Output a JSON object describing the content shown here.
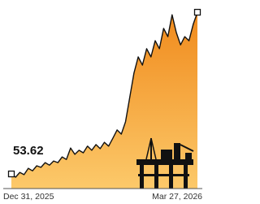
{
  "chart_data": {
    "type": "area",
    "categories": [
      "Dec 31, 2025",
      null,
      null,
      null,
      null,
      null,
      null,
      null,
      null,
      null,
      null,
      null,
      null,
      null,
      null,
      null,
      null,
      null,
      null,
      null,
      null,
      null,
      null,
      null,
      null,
      null,
      null,
      null,
      null,
      null,
      null,
      null,
      null,
      null,
      null,
      null,
      null,
      null,
      null,
      null,
      null,
      null,
      null,
      null,
      "Mar 27, 2026"
    ],
    "series": [
      {
        "color": "#f39a1e",
        "values": [
          53.62,
          52.6,
          54.1,
          53.4,
          55.4,
          54.6,
          56.2,
          55.7,
          57.2,
          56.4,
          57.7,
          57.2,
          59.0,
          58.2,
          61.8,
          59.8,
          61.1,
          60.3,
          62.4,
          61.1,
          62.9,
          61.6,
          63.6,
          62.4,
          64.9,
          67.5,
          66.2,
          70.1,
          77.8,
          85.5,
          90.6,
          88.0,
          93.2,
          90.6,
          95.7,
          93.2,
          99.6,
          97.0,
          103.9,
          98.3,
          94.4,
          97.0,
          95.7,
          100.9,
          104.7
        ]
      }
    ],
    "ylim": [
      49,
      106
    ]
  }
}
